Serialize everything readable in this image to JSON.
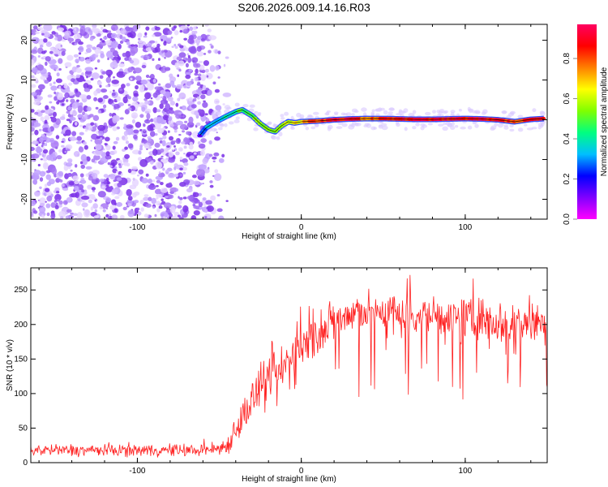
{
  "title": "S206.2026.009.14.16.R03",
  "chart_data": [
    {
      "type": "heatmap",
      "name": "spectrogram",
      "xlabel": "Height of straight line (km)",
      "ylabel": "Frequency (Hz)",
      "xlim": [
        -165,
        150
      ],
      "ylim": [
        -25,
        24
      ],
      "xticks": [
        -100,
        0,
        100
      ],
      "yticks": [
        -20,
        -10,
        0,
        10,
        20
      ],
      "colorbar": {
        "label": "Normalized spectral amplitude",
        "range": [
          0.0,
          0.97
        ],
        "ticks": [
          0.0,
          0.2,
          0.4,
          0.6,
          0.8
        ],
        "colormap": [
          "#ff00ff",
          "#8000ff",
          "#0000ff",
          "#00bfff",
          "#00ff80",
          "#80ff00",
          "#ffff00",
          "#ff8000",
          "#ff0000",
          "#ff0060"
        ]
      },
      "noise_region_x": [
        -165,
        -52
      ],
      "signal_track": {
        "x": [
          -62,
          -58,
          -52,
          -46,
          -40,
          -36,
          -30,
          -25,
          -20,
          -16,
          -12,
          -8,
          -4,
          0,
          10,
          20,
          30,
          40,
          50,
          60,
          70,
          80,
          90,
          100,
          110,
          120,
          130,
          140,
          148
        ],
        "y": [
          -4,
          -2,
          -0.5,
          0.8,
          2,
          2.5,
          1,
          -1,
          -2.5,
          -3,
          -1.5,
          -0.5,
          -0.8,
          -0.5,
          -0.3,
          0,
          0.2,
          0.3,
          0.3,
          0.2,
          0.1,
          0.1,
          0.2,
          0.3,
          0.2,
          0.0,
          -0.5,
          0.1,
          0.3
        ],
        "amplitude": [
          0.2,
          0.3,
          0.35,
          0.4,
          0.45,
          0.5,
          0.5,
          0.55,
          0.55,
          0.6,
          0.6,
          0.65,
          0.65,
          0.7,
          0.85,
          0.9,
          0.9,
          0.8,
          0.85,
          0.9,
          0.9,
          0.92,
          0.9,
          0.9,
          0.92,
          0.9,
          0.85,
          0.85,
          0.9
        ]
      }
    },
    {
      "type": "line",
      "name": "snr",
      "xlabel": "Height of straight line (km)",
      "ylabel": "SNR (10 * v/v)",
      "xlim": [
        -165,
        150
      ],
      "ylim": [
        0,
        282
      ],
      "xticks": [
        -100,
        0,
        100
      ],
      "yticks": [
        0,
        50,
        100,
        150,
        200,
        250
      ],
      "color": "#ff2020",
      "envelope": {
        "x": [
          -165,
          -60,
          -52,
          -45,
          -40,
          -35,
          -30,
          -25,
          -20,
          -15,
          -10,
          -5,
          0,
          5,
          10,
          15,
          20,
          25,
          30,
          40,
          50,
          60,
          70,
          80,
          90,
          100,
          110,
          120,
          130,
          140,
          150
        ],
        "mean": [
          18,
          18,
          20,
          25,
          50,
          70,
          90,
          105,
          110,
          120,
          140,
          155,
          165,
          175,
          185,
          195,
          205,
          210,
          215,
          218,
          218,
          215,
          215,
          212,
          210,
          208,
          208,
          205,
          205,
          205,
          205
        ],
        "spread": [
          10,
          10,
          12,
          15,
          25,
          30,
          35,
          35,
          40,
          45,
          50,
          45,
          40,
          38,
          35,
          35,
          35,
          35,
          35,
          35,
          35,
          35,
          35,
          35,
          35,
          35,
          35,
          35,
          35,
          35,
          35
        ]
      }
    }
  ]
}
